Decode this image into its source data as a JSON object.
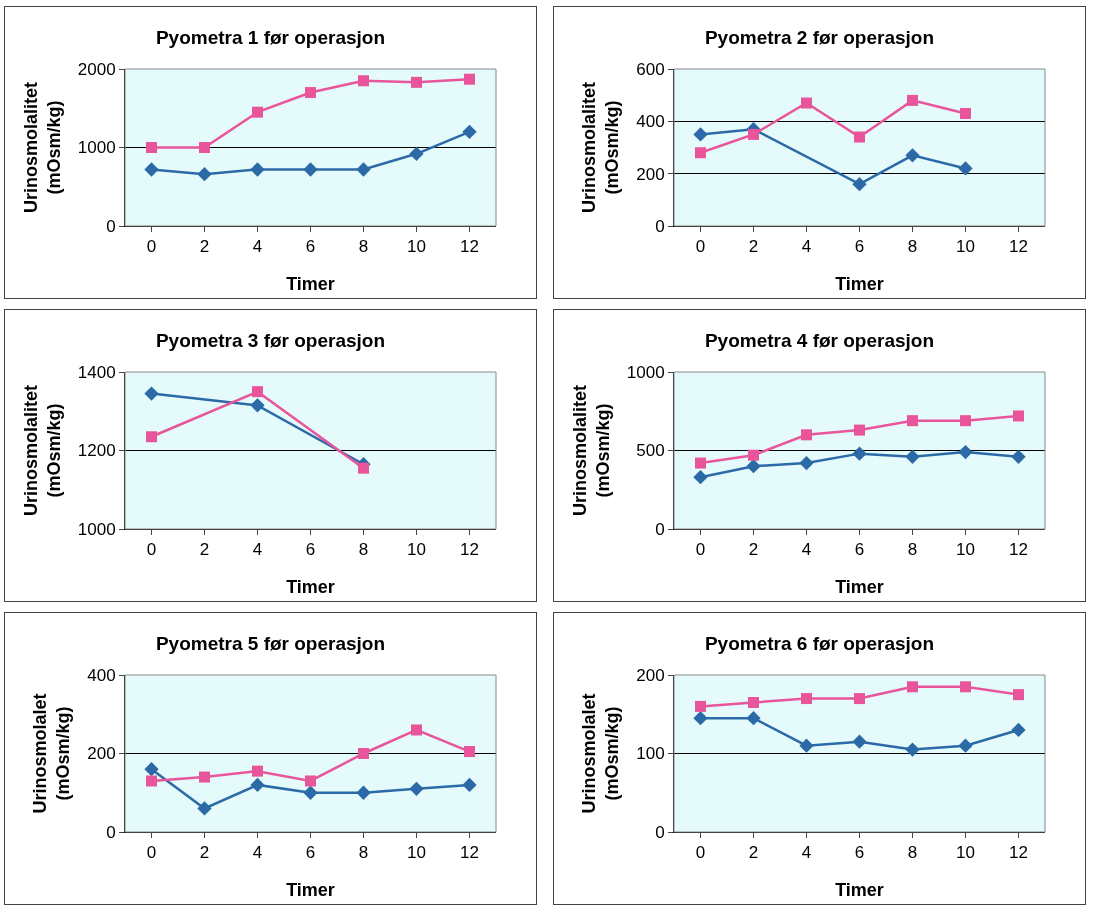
{
  "chart_data": [
    {
      "type": "line",
      "title": "Pyometra 1 før operasjon",
      "xlabel": "Timer",
      "ylabel": "Urinosmolalitet (mOsm/kg)",
      "categories": [
        "0",
        "2",
        "4",
        "6",
        "8",
        "10",
        "12"
      ],
      "ylim": [
        0,
        2000
      ],
      "yticks": [
        0,
        1000,
        2000
      ],
      "grid": "y",
      "series": [
        {
          "color": "#2b6aa6",
          "marker": "diamond",
          "values": [
            720,
            660,
            720,
            720,
            720,
            920,
            1200
          ]
        },
        {
          "color": "#e8559a",
          "marker": "square",
          "values": [
            1000,
            1000,
            1450,
            1700,
            1850,
            1830,
            1870
          ]
        }
      ]
    },
    {
      "type": "line",
      "title": "Pyometra 2 før operasjon",
      "xlabel": "Timer",
      "ylabel": "Urinosmolalitet (mOsm/kg)",
      "categories": [
        "0",
        "2",
        "4",
        "6",
        "8",
        "10",
        "12"
      ],
      "ylim": [
        0,
        600
      ],
      "yticks": [
        0,
        200,
        400,
        600
      ],
      "grid": "y",
      "series": [
        {
          "color": "#2b6aa6",
          "marker": "diamond",
          "values": [
            350,
            370,
            null,
            160,
            270,
            220,
            null
          ]
        },
        {
          "color": "#e8559a",
          "marker": "square",
          "values": [
            280,
            350,
            470,
            340,
            480,
            430,
            null
          ]
        }
      ]
    },
    {
      "type": "line",
      "title": "Pyometra 3 før operasjon",
      "xlabel": "Timer",
      "ylabel": "Urinosmolalitet (mOsm/kg)",
      "categories": [
        "0",
        "2",
        "4",
        "6",
        "8",
        "10",
        "12"
      ],
      "ylim": [
        1000,
        1400
      ],
      "yticks": [
        1000,
        1200,
        1400
      ],
      "grid": "y",
      "series": [
        {
          "color": "#2b6aa6",
          "marker": "diamond",
          "values": [
            1345,
            null,
            1315,
            null,
            1165,
            null,
            null
          ]
        },
        {
          "color": "#e8559a",
          "marker": "square",
          "values": [
            1235,
            null,
            1350,
            null,
            1155,
            null,
            null
          ]
        }
      ]
    },
    {
      "type": "line",
      "title": "Pyometra 4 før operasjon",
      "xlabel": "Timer",
      "ylabel": "Urinosmolalitet (mOsm/kg)",
      "categories": [
        "0",
        "2",
        "4",
        "6",
        "8",
        "10",
        "12"
      ],
      "ylim": [
        0,
        1000
      ],
      "yticks": [
        0,
        500,
        1000
      ],
      "grid": "y",
      "series": [
        {
          "color": "#2b6aa6",
          "marker": "diamond",
          "values": [
            330,
            400,
            420,
            480,
            460,
            490,
            460
          ]
        },
        {
          "color": "#e8559a",
          "marker": "square",
          "values": [
            420,
            470,
            600,
            630,
            690,
            690,
            720
          ]
        }
      ]
    },
    {
      "type": "line",
      "title": "Pyometra 5 før operasjon",
      "xlabel": "Timer",
      "ylabel": "Urinosmolalet (mOsm/kg)",
      "categories": [
        "0",
        "2",
        "4",
        "6",
        "8",
        "10",
        "12"
      ],
      "ylim": [
        0,
        400
      ],
      "yticks": [
        0,
        200,
        400
      ],
      "grid": "y",
      "series": [
        {
          "color": "#2b6aa6",
          "marker": "diamond",
          "values": [
            160,
            60,
            120,
            100,
            100,
            110,
            120
          ]
        },
        {
          "color": "#e8559a",
          "marker": "square",
          "values": [
            130,
            140,
            155,
            130,
            200,
            260,
            205
          ]
        }
      ]
    },
    {
      "type": "line",
      "title": "Pyometra 6 før operasjon",
      "xlabel": "Timer",
      "ylabel": "Urinosmolalet (mOsm/kg)",
      "categories": [
        "0",
        "2",
        "4",
        "6",
        "8",
        "10",
        "12"
      ],
      "ylim": [
        0,
        200
      ],
      "yticks": [
        0,
        100,
        200
      ],
      "grid": "y",
      "series": [
        {
          "color": "#2b6aa6",
          "marker": "diamond",
          "values": [
            145,
            145,
            110,
            115,
            105,
            110,
            130
          ]
        },
        {
          "color": "#e8559a",
          "marker": "square",
          "values": [
            160,
            165,
            170,
            170,
            185,
            185,
            175
          ]
        }
      ]
    }
  ]
}
